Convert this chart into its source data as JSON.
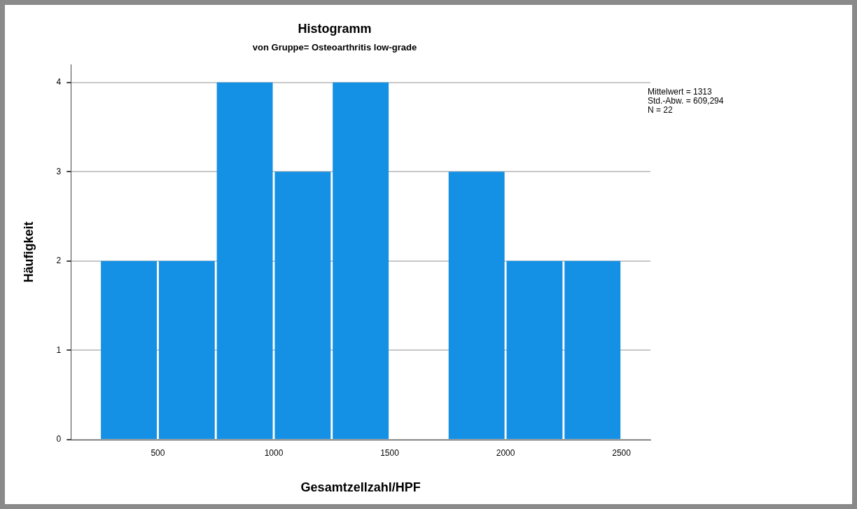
{
  "chart_data": {
    "type": "histogram",
    "title": "Histogramm",
    "subtitle": "von Gruppe= Osteoarthritis low-grade",
    "xlabel": "Gesamtzellzahl/HPF",
    "ylabel": "Häufigkeit",
    "bins": [
      250,
      500,
      750,
      1000,
      1250,
      1500,
      1750,
      2000,
      2250,
      2500
    ],
    "values": [
      2,
      2,
      4,
      3,
      4,
      0,
      3,
      2,
      2
    ],
    "color": "#1490e4",
    "xlim": [
      125,
      2625
    ],
    "xticks": [
      500,
      1000,
      1500,
      2000,
      2500
    ],
    "ylim": [
      0,
      4.2
    ],
    "yticks": [
      0,
      1,
      2,
      3,
      4
    ],
    "grid": "y",
    "annotations": [
      "Mittelwert = 1313",
      "Std.-Abw. = 609,294",
      "N = 22"
    ]
  }
}
